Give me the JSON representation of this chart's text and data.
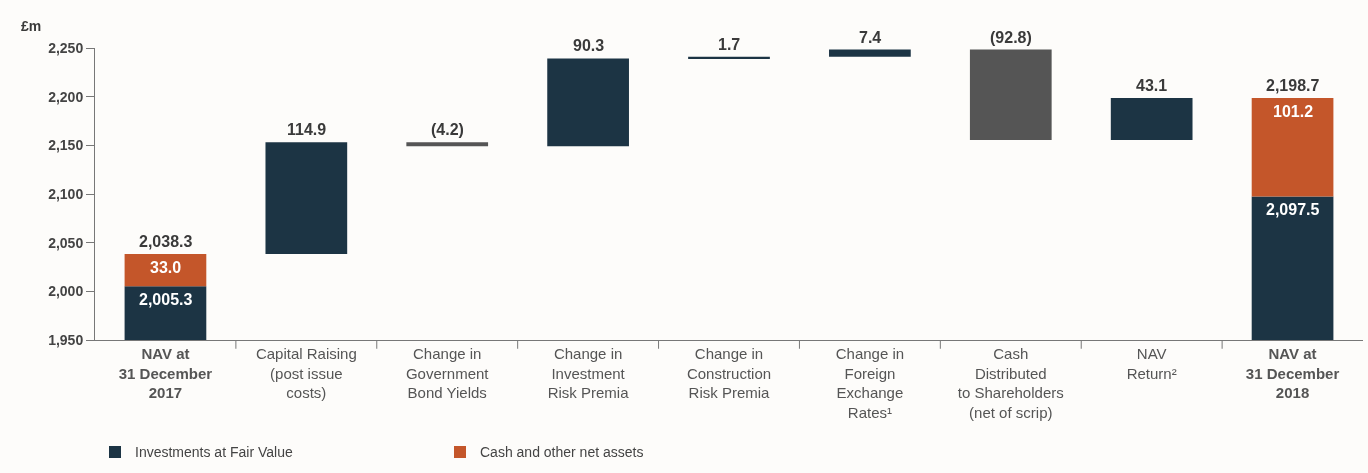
{
  "chart_data": {
    "type": "bar",
    "ylabel": "£m",
    "categories": [
      "NAV at\n31 December\n2017",
      "Capital Raising\n(post issue\ncosts)",
      "Change in\nGovernment\nBond Yields",
      "Change in\nInvestment\nRisk Premia",
      "Change in\nConstruction\nRisk Premia",
      "Change in\nForeign\nExchange\nRates¹",
      "Cash\nDistributed\nto Shareholders\n(net of scrip)",
      "NAV\nReturn²",
      "NAV at\n31 December\n2018"
    ],
    "series": [
      {
        "name": "Investments at Fair Value",
        "color": "#1c3444",
        "values": [
          2005.3,
          114.9,
          null,
          90.3,
          1.7,
          7.4,
          null,
          43.1,
          2097.5
        ],
        "base": [
          null,
          2038.3,
          null,
          2149.0,
          2239.3,
          2241.0,
          null,
          2155.6,
          null
        ],
        "value_labels": [
          "2,005.3",
          "114.9",
          null,
          "90.3",
          "1.7",
          "7.4",
          null,
          "43.1",
          "2,097.5"
        ]
      },
      {
        "color": "#555555",
        "values": [
          null,
          null,
          -4.2,
          null,
          null,
          null,
          -92.8,
          null,
          null
        ],
        "base": [
          null,
          null,
          2153.2,
          null,
          null,
          null,
          2248.4,
          null,
          null
        ],
        "value_labels": [
          null,
          null,
          "(4.2)",
          null,
          null,
          null,
          "(92.8)",
          null,
          null
        ]
      },
      {
        "name": "Cash and other net assets",
        "color": "#c4562a",
        "values": [
          33.0,
          null,
          null,
          null,
          null,
          null,
          null,
          null,
          101.2
        ],
        "base": [
          2005.3,
          null,
          null,
          null,
          null,
          null,
          null,
          null,
          2097.5
        ],
        "value_labels": [
          "33.0",
          null,
          null,
          null,
          null,
          null,
          null,
          null,
          "101.2"
        ]
      }
    ],
    "totals": [
      "2,038.3",
      null,
      null,
      null,
      null,
      null,
      null,
      null,
      "2,198.7"
    ],
    "ylim": [
      1950,
      2250
    ],
    "yticks": [
      {
        "value": 1950,
        "label": "1,950"
      },
      {
        "value": 2000,
        "label": "2,000"
      },
      {
        "value": 2050,
        "label": "2,050"
      },
      {
        "value": 2100,
        "label": "2,100"
      },
      {
        "value": 2150,
        "label": "2,150"
      },
      {
        "value": 2200,
        "label": "2,200"
      },
      {
        "value": 2250,
        "label": "2,250"
      }
    ],
    "grid": false,
    "legend": "bottom left"
  }
}
